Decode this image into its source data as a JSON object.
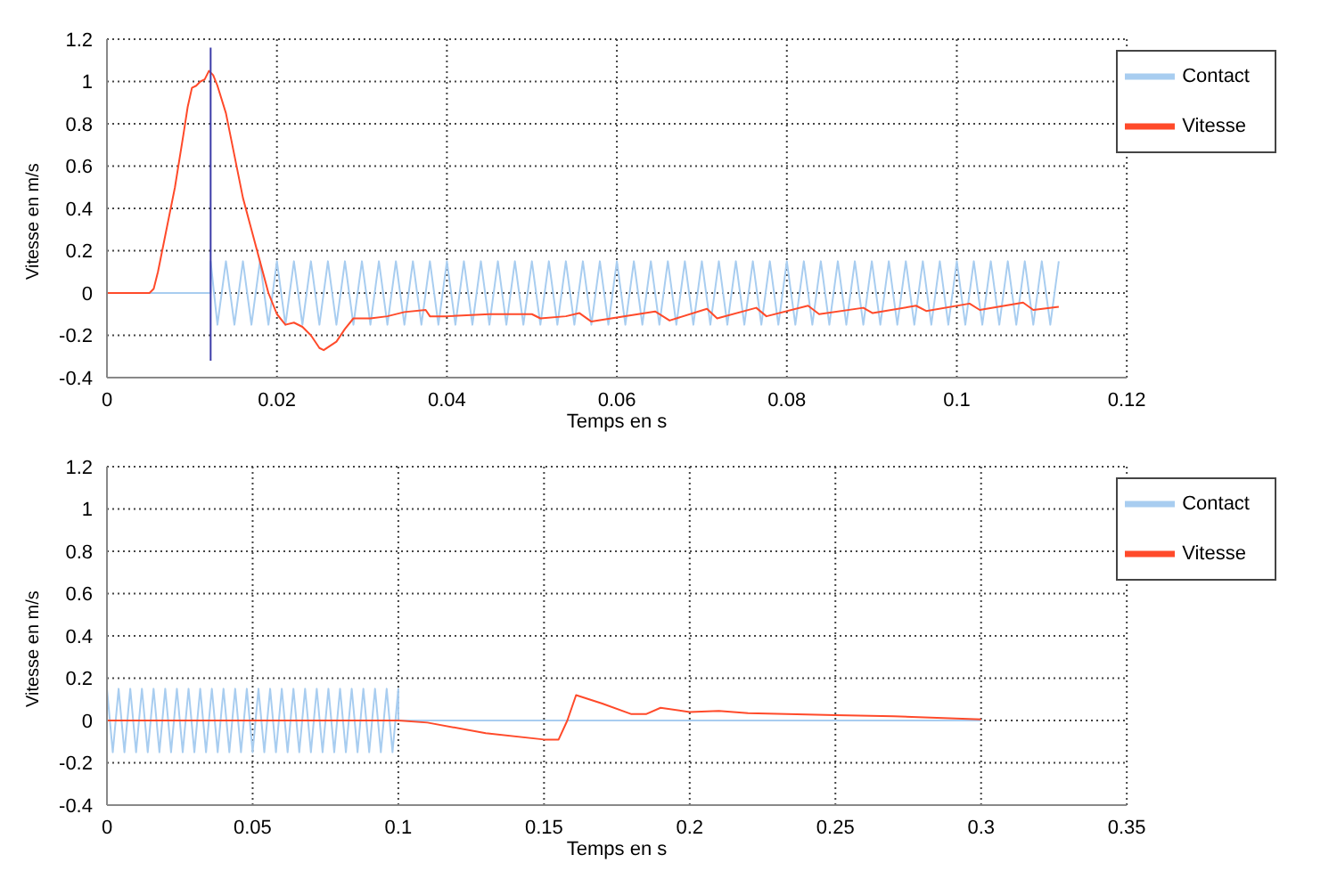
{
  "chart_data": [
    {
      "type": "line",
      "xlabel": "Temps en s",
      "ylabel": "Vitesse en m/s",
      "xlim": [
        0,
        0.12
      ],
      "xticks": [
        0,
        0.02,
        0.04,
        0.06,
        0.08,
        0.1,
        0.12
      ],
      "ylim": [
        -0.4,
        1.2
      ],
      "yticks": [
        -0.4,
        -0.2,
        0,
        0.2,
        0.4,
        0.6,
        0.8,
        1,
        1.2
      ],
      "grid": true,
      "legend": "top right",
      "marker": "none",
      "line_style": "solid",
      "series": [
        {
          "name": "Contact",
          "color": "#a8cdf0",
          "x": [
            0,
            0.0122,
            0.0122,
            0.013,
            0.014,
            0.015,
            0.016,
            0.017,
            0.018,
            0.019,
            0.02,
            0.021,
            0.022,
            0.023,
            0.024,
            0.025,
            0.026,
            0.027,
            0.028,
            0.029,
            0.03,
            0.031,
            0.032,
            0.033,
            0.034,
            0.035,
            0.036,
            0.037,
            0.038,
            0.039,
            0.04,
            0.041,
            0.042,
            0.043,
            0.044,
            0.045,
            0.046,
            0.047,
            0.048,
            0.049,
            0.05,
            0.051,
            0.052,
            0.053,
            0.054,
            0.055,
            0.056,
            0.057,
            0.058,
            0.059,
            0.06,
            0.061,
            0.062,
            0.063,
            0.064,
            0.065,
            0.066,
            0.067,
            0.068,
            0.069,
            0.07,
            0.071,
            0.072,
            0.073,
            0.074,
            0.075,
            0.076,
            0.077,
            0.078,
            0.079,
            0.08,
            0.081,
            0.082,
            0.083,
            0.084,
            0.085,
            0.086,
            0.087,
            0.088,
            0.089,
            0.09,
            0.091,
            0.092,
            0.093,
            0.094,
            0.095,
            0.096,
            0.097,
            0.098,
            0.099,
            0.1,
            0.101,
            0.102,
            0.103,
            0.104,
            0.105,
            0.106,
            0.107,
            0.108,
            0.109,
            0.11,
            0.111,
            0.112
          ],
          "values": [
            0,
            0,
            0.15,
            -0.15,
            0.15,
            -0.15,
            0.15,
            -0.15,
            0.15,
            -0.15,
            0.15,
            -0.15,
            0.15,
            -0.15,
            0.15,
            -0.15,
            0.15,
            -0.15,
            0.15,
            -0.15,
            0.15,
            -0.15,
            0.15,
            -0.15,
            0.15,
            -0.15,
            0.15,
            -0.15,
            0.15,
            -0.15,
            0.15,
            -0.15,
            0.15,
            -0.15,
            0.15,
            -0.15,
            0.15,
            -0.15,
            0.15,
            -0.15,
            0.15,
            -0.15,
            0.15,
            -0.15,
            0.15,
            -0.15,
            0.15,
            -0.15,
            0.15,
            -0.15,
            0.15,
            -0.15,
            0.15,
            -0.15,
            0.15,
            -0.15,
            0.15,
            -0.15,
            0.15,
            -0.15,
            0.15,
            -0.15,
            0.15,
            -0.15,
            0.15,
            -0.15,
            0.15,
            -0.15,
            0.15,
            -0.15,
            0.15,
            -0.15,
            0.15,
            -0.15,
            0.15,
            -0.15,
            0.15,
            -0.15,
            0.15,
            -0.15,
            0.15,
            -0.15,
            0.15,
            -0.15,
            0.15,
            -0.15,
            0.15,
            -0.15,
            0.15,
            -0.15,
            0.15,
            -0.15,
            0.15,
            -0.15,
            0.15,
            -0.15,
            0.15,
            -0.15,
            0.15,
            -0.15,
            0.15,
            -0.15,
            0.15
          ]
        },
        {
          "name": "Vitesse",
          "color": "#ff4a2a",
          "x": [
            0,
            0.005,
            0.0055,
            0.006,
            0.007,
            0.008,
            0.009,
            0.0095,
            0.01,
            0.0105,
            0.011,
            0.0115,
            0.012,
            0.0125,
            0.013,
            0.014,
            0.015,
            0.016,
            0.017,
            0.018,
            0.019,
            0.02,
            0.021,
            0.022,
            0.023,
            0.024,
            0.025,
            0.0255,
            0.027,
            0.028,
            0.029,
            0.031,
            0.033,
            0.035,
            0.0375,
            0.038,
            0.04,
            0.045,
            0.05,
            0.051,
            0.054,
            0.0556,
            0.057,
            0.0645,
            0.0662,
            0.0706,
            0.0718,
            0.0764,
            0.0776,
            0.0825,
            0.0838,
            0.089,
            0.0901,
            0.0952,
            0.0964,
            0.1015,
            0.1027,
            0.1078,
            0.109,
            0.112
          ],
          "values": [
            0,
            0,
            0.02,
            0.1,
            0.3,
            0.5,
            0.75,
            0.88,
            0.97,
            0.98,
            1,
            1.01,
            1.05,
            1.03,
            0.98,
            0.85,
            0.65,
            0.45,
            0.3,
            0.15,
            0,
            -0.1,
            -0.15,
            -0.14,
            -0.16,
            -0.2,
            -0.26,
            -0.27,
            -0.23,
            -0.17,
            -0.12,
            -0.12,
            -0.11,
            -0.09,
            -0.08,
            -0.11,
            -0.11,
            -0.1,
            -0.1,
            -0.12,
            -0.11,
            -0.095,
            -0.135,
            -0.087,
            -0.13,
            -0.075,
            -0.12,
            -0.07,
            -0.11,
            -0.06,
            -0.1,
            -0.07,
            -0.095,
            -0.06,
            -0.085,
            -0.05,
            -0.08,
            -0.045,
            -0.08,
            -0.065
          ]
        },
        {
          "color": "#3c3ca8",
          "x": [
            0.0122,
            0.0122
          ],
          "values": [
            -0.32,
            1.16
          ]
        }
      ]
    },
    {
      "type": "line",
      "xlabel": "Temps en s",
      "ylabel": "Vitesse en m/s",
      "xlim": [
        0,
        0.35
      ],
      "xticks": [
        0,
        0.05,
        0.1,
        0.15,
        0.2,
        0.25,
        0.3,
        0.35
      ],
      "ylim": [
        -0.4,
        1.2
      ],
      "yticks": [
        -0.4,
        -0.2,
        0,
        0.2,
        0.4,
        0.6,
        0.8,
        1,
        1.2
      ],
      "grid": true,
      "legend": "top right",
      "marker": "none",
      "line_style": "solid",
      "series": [
        {
          "name": "Contact",
          "color": "#a8cdf0",
          "x": [
            0,
            0.002,
            0.004,
            0.006,
            0.008,
            0.01,
            0.012,
            0.014,
            0.016,
            0.018,
            0.02,
            0.022,
            0.024,
            0.026,
            0.028,
            0.03,
            0.032,
            0.034,
            0.036,
            0.038,
            0.04,
            0.042,
            0.044,
            0.046,
            0.048,
            0.05,
            0.052,
            0.054,
            0.056,
            0.058,
            0.06,
            0.062,
            0.064,
            0.066,
            0.068,
            0.07,
            0.072,
            0.074,
            0.076,
            0.078,
            0.08,
            0.082,
            0.084,
            0.086,
            0.088,
            0.09,
            0.092,
            0.094,
            0.096,
            0.098,
            0.1,
            0.1,
            0.3
          ],
          "values": [
            0.15,
            -0.15,
            0.15,
            -0.15,
            0.15,
            -0.15,
            0.15,
            -0.15,
            0.15,
            -0.15,
            0.15,
            -0.15,
            0.15,
            -0.15,
            0.15,
            -0.15,
            0.15,
            -0.15,
            0.15,
            -0.15,
            0.15,
            -0.15,
            0.15,
            -0.15,
            0.15,
            -0.15,
            0.15,
            -0.15,
            0.15,
            -0.15,
            0.15,
            -0.15,
            0.15,
            -0.15,
            0.15,
            -0.15,
            0.15,
            -0.15,
            0.15,
            -0.15,
            0.15,
            -0.15,
            0.15,
            -0.15,
            0.15,
            -0.15,
            0.15,
            -0.15,
            0.15,
            -0.15,
            0.15,
            0,
            0
          ]
        },
        {
          "name": "Vitesse",
          "color": "#ff4a2a",
          "x": [
            0,
            0.1,
            0.11,
            0.13,
            0.15,
            0.155,
            0.158,
            0.161,
            0.17,
            0.18,
            0.185,
            0.19,
            0.2,
            0.21,
            0.22,
            0.25,
            0.27,
            0.3
          ],
          "values": [
            0,
            0,
            -0.01,
            -0.06,
            -0.09,
            -0.09,
            0,
            0.12,
            0.08,
            0.03,
            0.03,
            0.06,
            0.04,
            0.045,
            0.035,
            0.025,
            0.02,
            0.005
          ]
        }
      ]
    }
  ]
}
